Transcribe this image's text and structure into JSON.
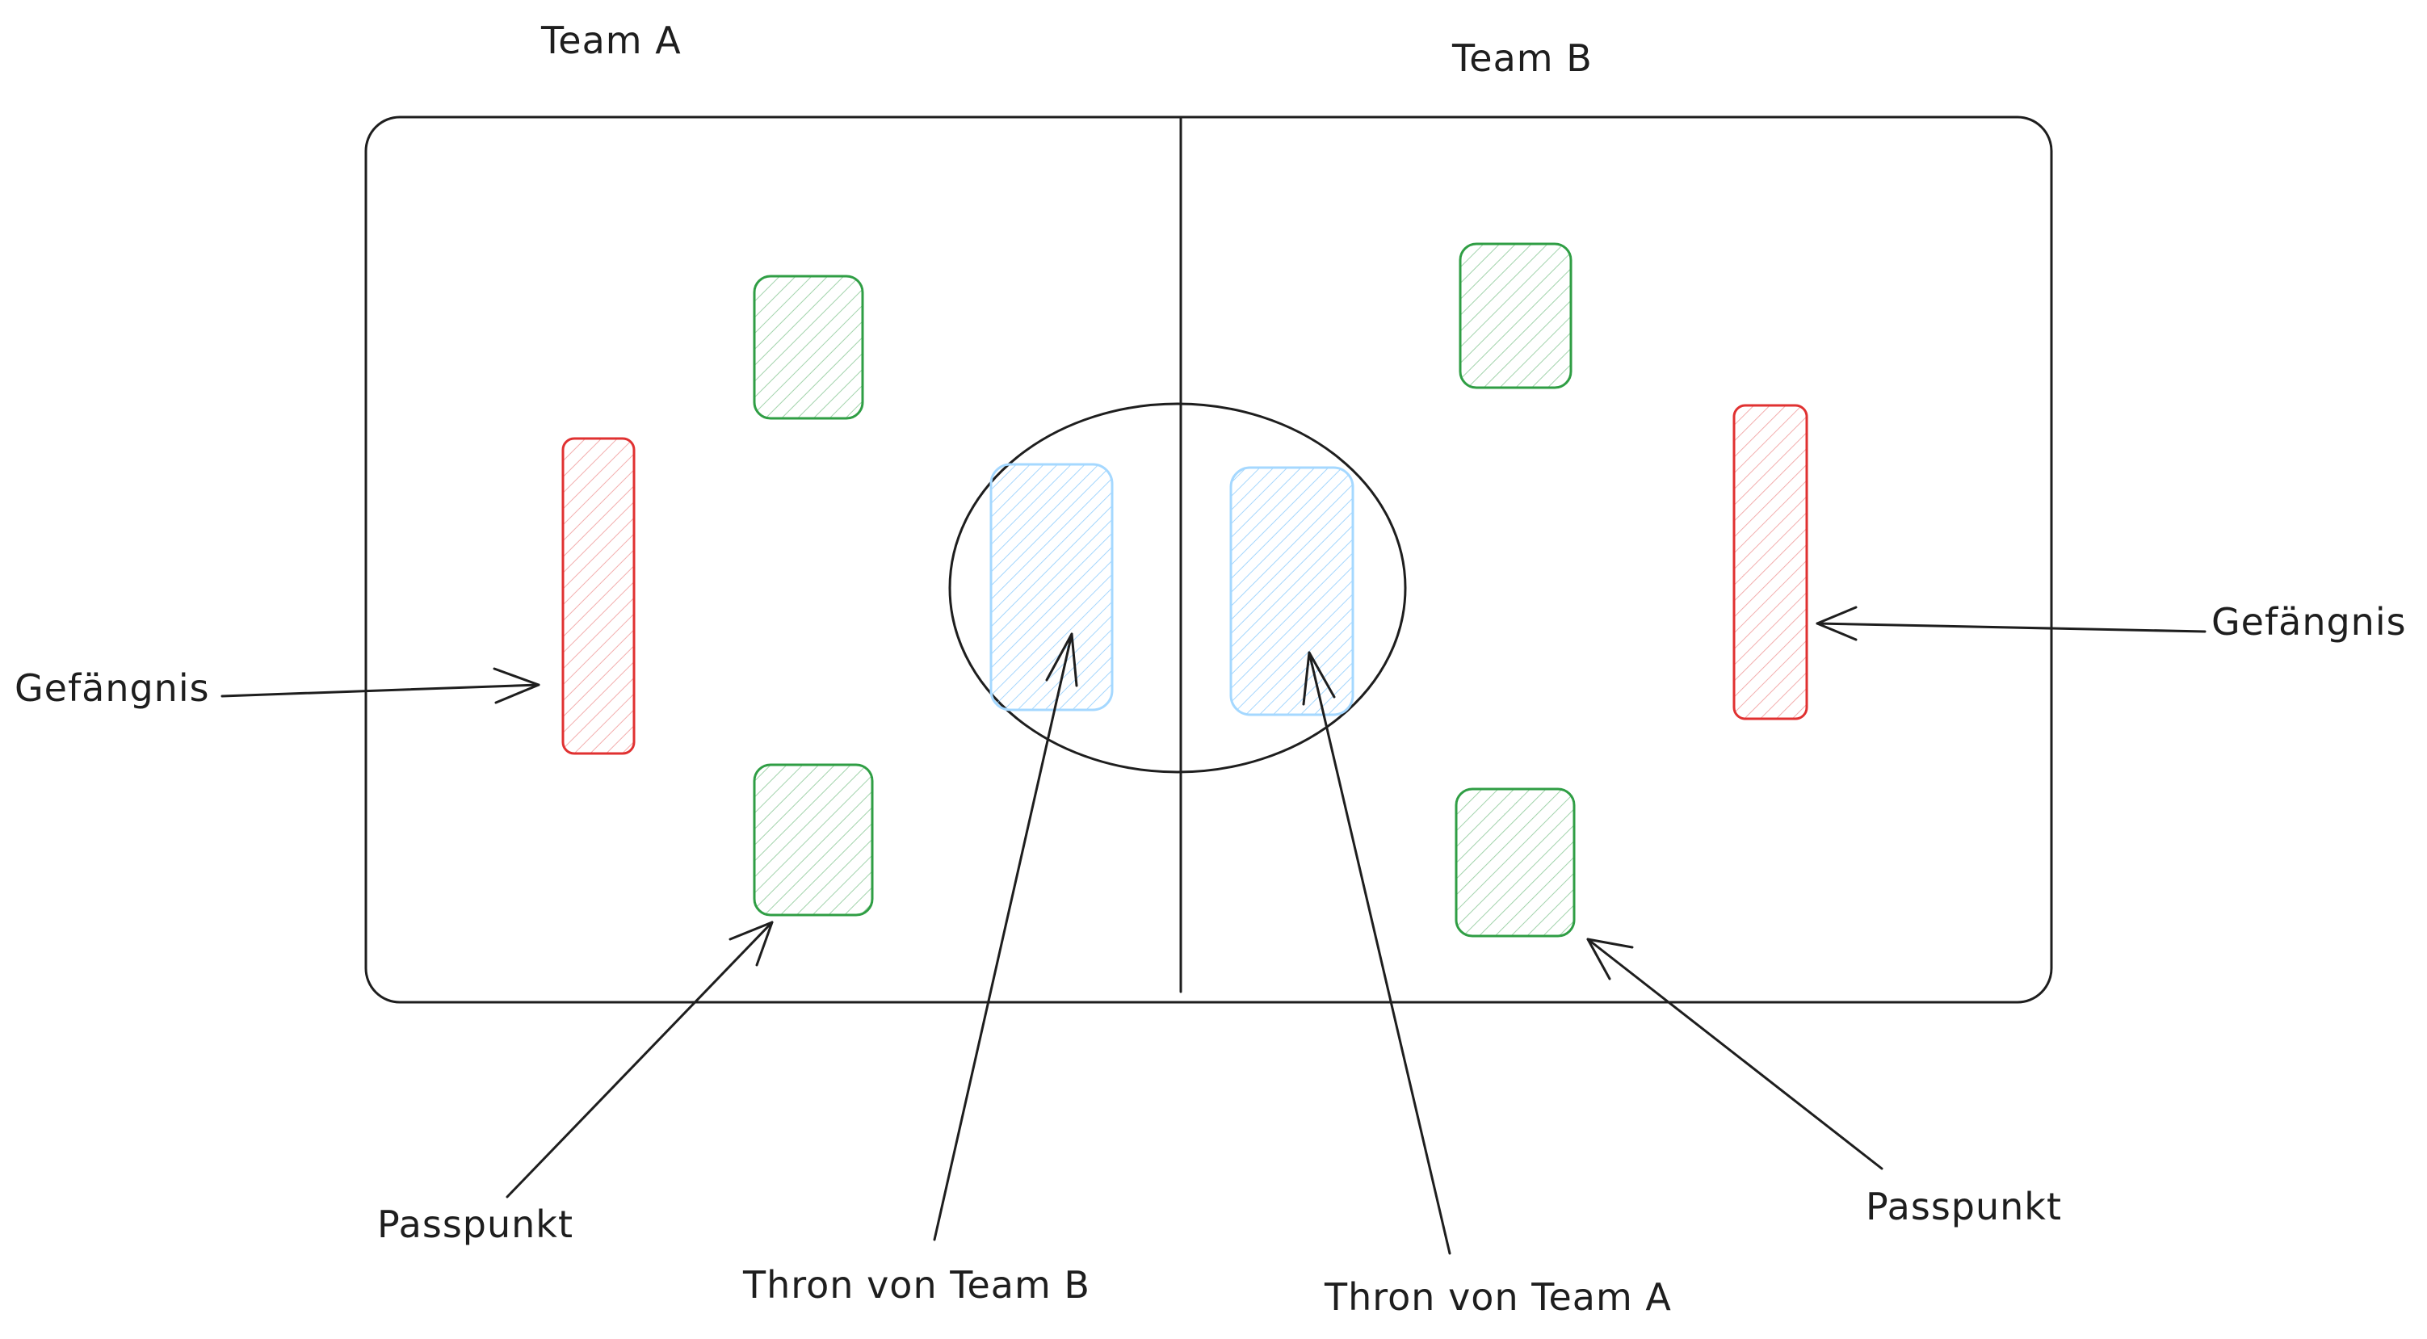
{
  "teams": {
    "a": "Team A",
    "b": "Team B"
  },
  "labels": {
    "jail_left": "Gefängnis",
    "jail_right": "Gefängnis",
    "pass_left": "Passpunkt",
    "pass_right": "Passpunkt",
    "throne_b": "Thron von Team B",
    "throne_a": "Thron von Team A"
  },
  "colors": {
    "outline": "#1e1e1e",
    "pass_point": "#2f9e44",
    "jail": "#e03131",
    "throne": "#a5d8ff"
  }
}
